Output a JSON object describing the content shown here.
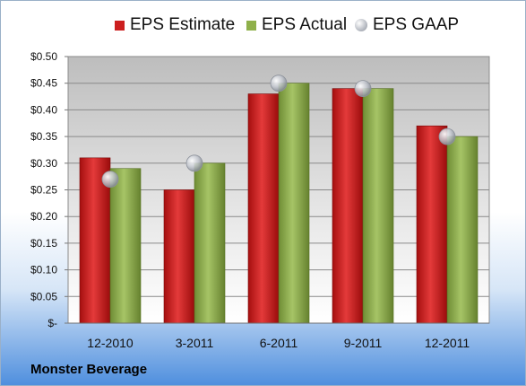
{
  "legend": {
    "estimate": "EPS Estimate",
    "actual": "EPS Actual",
    "gaap": "EPS GAAP"
  },
  "company": "Monster Beverage",
  "colors": {
    "estimate": "#cc1f1f",
    "actual": "#8fb04a",
    "gaap": "#b8bcc4"
  },
  "chart_data": {
    "type": "bar",
    "categories": [
      "12-2010",
      "3-2011",
      "6-2011",
      "9-2011",
      "12-2011"
    ],
    "series": [
      {
        "name": "EPS Estimate",
        "values": [
          0.31,
          0.25,
          0.43,
          0.44,
          0.37
        ]
      },
      {
        "name": "EPS Actual",
        "values": [
          0.29,
          0.3,
          0.45,
          0.44,
          0.35
        ]
      },
      {
        "name": "EPS GAAP",
        "type": "scatter",
        "values": [
          0.27,
          0.3,
          0.45,
          0.44,
          0.35
        ]
      }
    ],
    "ylim": [
      0,
      0.5
    ],
    "yticks": [
      0,
      0.05,
      0.1,
      0.15,
      0.2,
      0.25,
      0.3,
      0.35,
      0.4,
      0.45,
      0.5
    ],
    "ytick_labels": [
      "$-",
      "$0.05",
      "$0.10",
      "$0.15",
      "$0.20",
      "$0.25",
      "$0.30",
      "$0.35",
      "$0.40",
      "$0.45",
      "$0.50"
    ],
    "grid": true,
    "legend_position": "top"
  }
}
